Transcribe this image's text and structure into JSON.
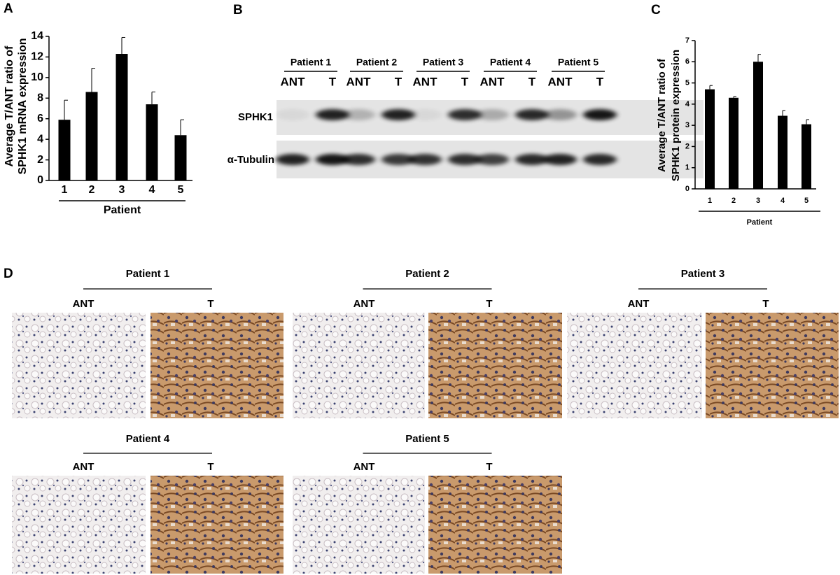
{
  "panel_labels": [
    "A",
    "B",
    "C",
    "D"
  ],
  "chart_data": [
    {
      "type": "bar",
      "ylabel": [
        "Average T/ANT ratio of",
        "SPHK1 mRNA expression"
      ],
      "xlabel": "Patient",
      "categories": [
        "1",
        "2",
        "3",
        "4",
        "5"
      ],
      "values": [
        5.9,
        8.6,
        12.3,
        7.4,
        4.4
      ],
      "errors": [
        1.9,
        2.3,
        1.6,
        1.2,
        1.5
      ],
      "color": "#000000",
      "ylim": [
        0,
        14
      ],
      "yticks": [
        0,
        2,
        4,
        6,
        8,
        10,
        12,
        14
      ]
    },
    {
      "type": "bar",
      "ylabel": [
        "Average T/ANT ratio of",
        "SPHK1 protein expression"
      ],
      "xlabel": "Patient",
      "categories": [
        "1",
        "2",
        "3",
        "4",
        "5"
      ],
      "values": [
        4.7,
        4.3,
        6.0,
        3.45,
        3.05
      ],
      "errors": [
        0.18,
        0.06,
        0.35,
        0.25,
        0.22
      ],
      "color": "#000000",
      "ylim": [
        0,
        7
      ],
      "yticks": [
        0,
        1,
        2,
        3,
        4,
        5,
        6,
        7
      ]
    }
  ],
  "blot": {
    "groups": [
      {
        "name": "Patient 1",
        "lanes": [
          "ANT",
          "T"
        ]
      },
      {
        "name": "Patient 2",
        "lanes": [
          "ANT",
          "T"
        ]
      },
      {
        "name": "Patient 3",
        "lanes": [
          "ANT",
          "T"
        ]
      },
      {
        "name": "Patient 4",
        "lanes": [
          "ANT",
          "T"
        ]
      },
      {
        "name": "Patient 5",
        "lanes": [
          "ANT",
          "T"
        ]
      }
    ],
    "rows": [
      "SPHK1",
      "α-Tubulin"
    ]
  },
  "ihc": {
    "groups": [
      {
        "name": "Patient 1",
        "lanes": [
          "ANT",
          "T"
        ]
      },
      {
        "name": "Patient 2",
        "lanes": [
          "ANT",
          "T"
        ]
      },
      {
        "name": "Patient 3",
        "lanes": [
          "ANT",
          "T"
        ]
      },
      {
        "name": "Patient 4",
        "lanes": [
          "ANT",
          "T"
        ]
      },
      {
        "name": "Patient 5",
        "lanes": [
          "ANT",
          "T"
        ]
      }
    ]
  }
}
